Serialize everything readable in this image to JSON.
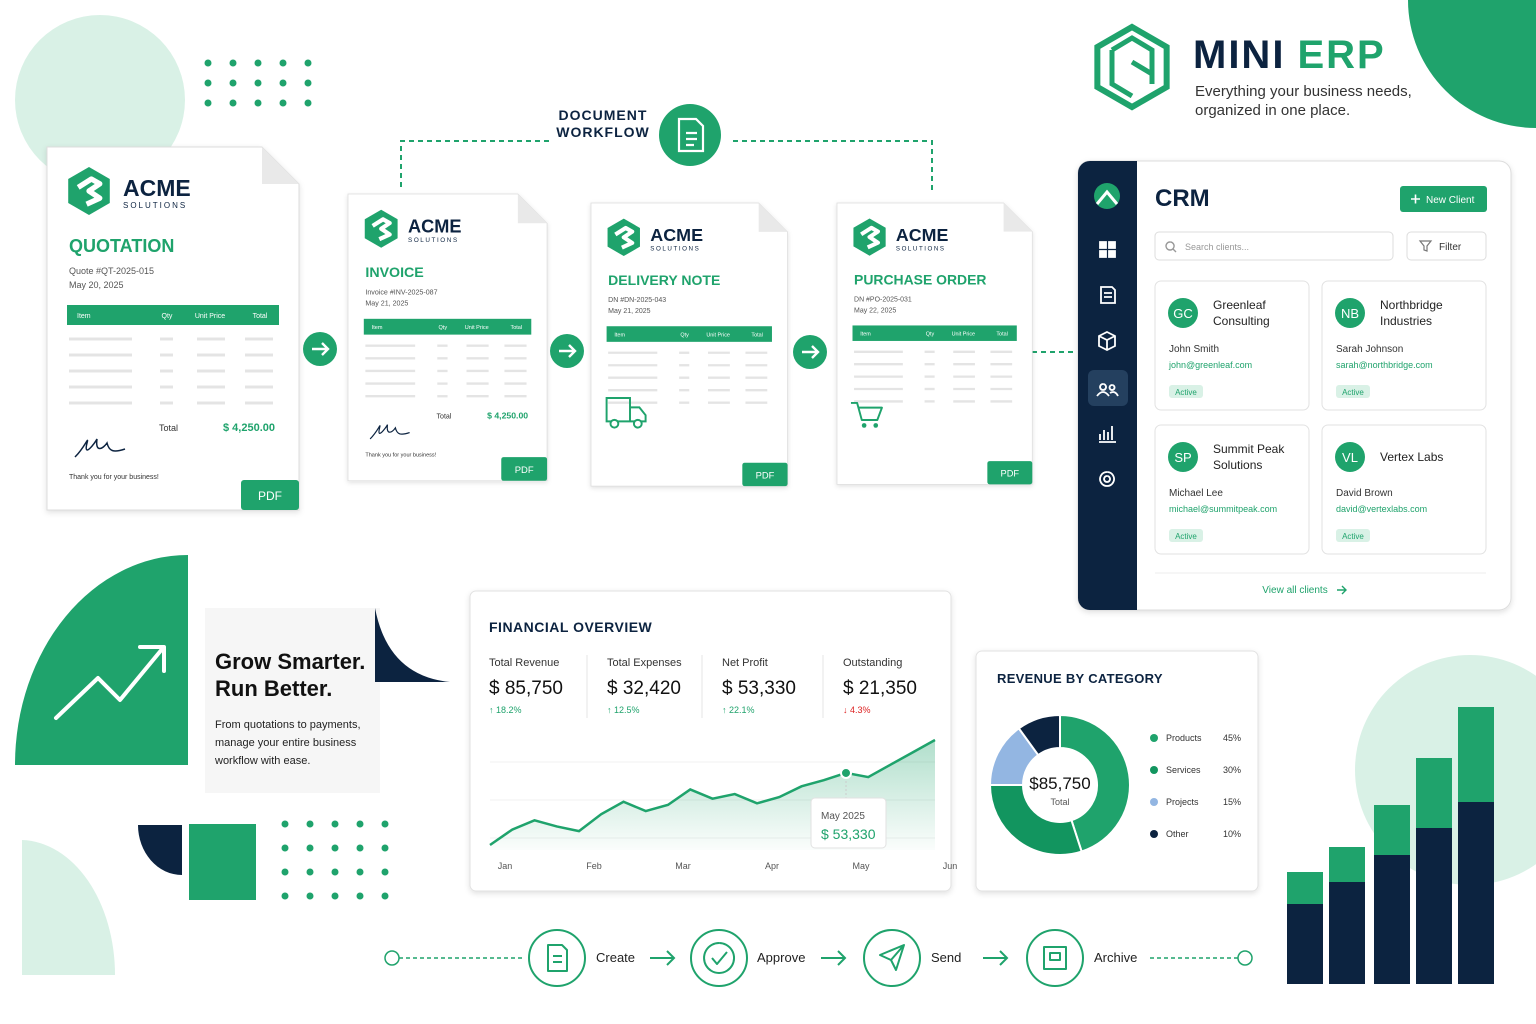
{
  "brand": {
    "name": "MINI",
    "name_accent": "ERP",
    "tagline": [
      "Everything your business needs,",
      "organized in one place."
    ]
  },
  "workflow_label": [
    "DOCUMENT",
    "WORKFLOW"
  ],
  "documents": [
    {
      "company": "ACME",
      "company_sub": "SOLUTIONS",
      "title": "QUOTATION",
      "number": "Quote #QT-2025-015",
      "date": "May 20, 2025",
      "columns": [
        "Item",
        "Qty",
        "Unit Price",
        "Total"
      ],
      "total_label": "Total",
      "total": "$ 4,250.00",
      "note": "Thank you for your business!",
      "button": "PDF"
    },
    {
      "company": "ACME",
      "company_sub": "SOLUTIONS",
      "title": "INVOICE",
      "number": "Invoice #INV-2025-087",
      "date": "May 21, 2025",
      "columns": [
        "Item",
        "Qty",
        "Unit Price",
        "Total"
      ],
      "total_label": "Total",
      "total": "$ 4,250.00",
      "note": "Thank you for your business!",
      "button": "PDF"
    },
    {
      "company": "ACME",
      "company_sub": "SOLUTIONS",
      "title": "DELIVERY NOTE",
      "number": "DN #DN-2025-043",
      "date": "May 21, 2025",
      "columns": [
        "Item",
        "Qty",
        "Unit Price",
        "Total"
      ],
      "button": "PDF"
    },
    {
      "company": "ACME",
      "company_sub": "SOLUTIONS",
      "title": "PURCHASE ORDER",
      "number": "DN #PO-2025-031",
      "date": "May 22, 2025",
      "columns": [
        "Item",
        "Qty",
        "Unit Price",
        "Total"
      ],
      "button": "PDF"
    }
  ],
  "crm": {
    "title": "CRM",
    "new_client": "New Client",
    "search": "Search clients...",
    "filter": "Filter",
    "clients": [
      {
        "initials": "GC",
        "name": [
          "Greenleaf",
          "Consulting"
        ],
        "contact": "John Smith",
        "email": "john@greenleaf.com",
        "status": "Active"
      },
      {
        "initials": "NB",
        "name": [
          "Northbridge",
          "Industries"
        ],
        "contact": "Sarah Johnson",
        "email": "sarah@northbridge.com",
        "status": "Active"
      },
      {
        "initials": "SP",
        "name": [
          "Summit Peak",
          "Solutions"
        ],
        "contact": "Michael Lee",
        "email": "michael@summitpeak.com",
        "status": "Active"
      },
      {
        "initials": "VL",
        "name": [
          "Vertex Labs"
        ],
        "contact": "David Brown",
        "email": "david@vertexlabs.com",
        "status": "Active"
      }
    ],
    "view_all": "View all clients"
  },
  "promo": {
    "headline": [
      "Grow Smarter.",
      "Run Better."
    ],
    "body": [
      "From quotations to payments,",
      "manage your entire business",
      "workflow with ease."
    ]
  },
  "financial_kpis": [
    {
      "label": "Total Revenue",
      "value": "$ 85,750",
      "change": "↑ 18.2%"
    },
    {
      "label": "Total Expenses",
      "value": "$ 32,420",
      "change": "↑ 12.5%"
    },
    {
      "label": "Net Profit",
      "value": "$ 53,330",
      "change": "↑ 22.1%"
    },
    {
      "label": "Outstanding",
      "value": "$ 21,350",
      "change": "↓ 4.3%"
    }
  ],
  "chart_data": [
    {
      "type": "line",
      "title": "FINANCIAL OVERVIEW",
      "categories": [
        "Jan",
        null,
        null,
        null,
        "Feb",
        null,
        null,
        null,
        "Mar",
        null,
        null,
        null,
        "Apr",
        null,
        null,
        null,
        "May",
        null,
        null,
        null,
        "Jun"
      ],
      "series": [
        {
          "color": "#1fa36c",
          "values": [
            30000,
            35000,
            38000,
            36000,
            34500,
            40000,
            44000,
            41000,
            43000,
            48000,
            45000,
            46500,
            43500,
            45500,
            49000,
            51000,
            53330,
            52000,
            56000,
            60000,
            64000
          ],
          "value_labels": [
            null,
            null,
            null,
            null,
            null,
            null,
            null,
            null,
            null,
            null,
            null,
            null,
            null,
            null,
            null,
            null,
            "$ 53,330",
            null,
            null,
            null,
            null
          ]
        }
      ],
      "tooltip_title": "May 2025"
    },
    {
      "type": "pie",
      "title": "REVENUE BY CATEGORY",
      "categories": [
        "Products",
        "Services",
        "Projects",
        "Other"
      ],
      "values": [
        45,
        30,
        15,
        10
      ],
      "value_labels": [
        "45%",
        "30%",
        "15%",
        "10%"
      ],
      "colors": [
        "#1fa36c",
        "#12955f",
        "#93b6e2",
        "#0c2340"
      ],
      "center_value": "$85,750",
      "center_label": "Total"
    }
  ],
  "steps": [
    "Create",
    "Approve",
    "Send",
    "Archive"
  ]
}
